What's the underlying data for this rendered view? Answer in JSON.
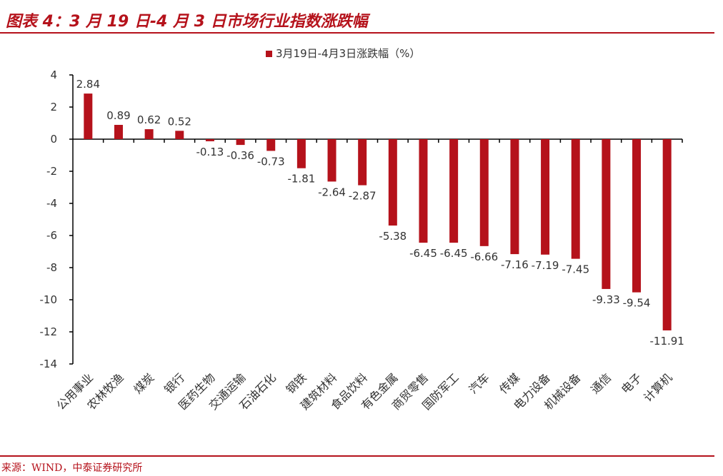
{
  "header": {
    "title": "图表 4：3 月 19 日-4 月 3 日市场行业指数涨跌幅"
  },
  "footer": {
    "source": "来源：WIND，中泰证券研究所"
  },
  "colors": {
    "bar": "#b5121b",
    "accent": "#b5121b",
    "axis": "#000000"
  },
  "chart_data": {
    "type": "bar",
    "categories": [
      "公用事业",
      "农林牧渔",
      "煤炭",
      "银行",
      "医药生物",
      "交通运输",
      "石油石化",
      "钢铁",
      "建筑材料",
      "食品饮料",
      "有色金属",
      "商贸零售",
      "国防军工",
      "汽车",
      "传媒",
      "电力设备",
      "机械设备",
      "通信",
      "电子",
      "计算机"
    ],
    "series": [
      {
        "name": "3月19日-4月3日涨跌幅（%）",
        "values": [
          2.84,
          0.89,
          0.62,
          0.52,
          -0.13,
          -0.36,
          -0.73,
          -1.81,
          -2.64,
          -2.87,
          -5.38,
          -6.45,
          -6.45,
          -6.66,
          -7.16,
          -7.19,
          -7.45,
          -9.33,
          -9.54,
          -11.91
        ]
      }
    ],
    "data_labels": [
      "2.84",
      "0.89",
      "0.62",
      "0.52",
      "-0.13",
      "-0.36",
      "-0.73",
      "-1.81",
      "-2.64",
      "-2.87",
      "-5.38",
      "-6.45",
      "-6.45",
      "-6.66",
      "-7.16",
      "-7.19",
      "-7.45",
      "-9.33",
      "-9.54",
      "-11.91"
    ],
    "yticks": [
      "4",
      "2",
      "0",
      "-2",
      "-4",
      "-6",
      "-8",
      "-10",
      "-12",
      "-14"
    ],
    "ylim": [
      -14,
      4
    ],
    "legend_position": "top-center",
    "grid": false
  }
}
